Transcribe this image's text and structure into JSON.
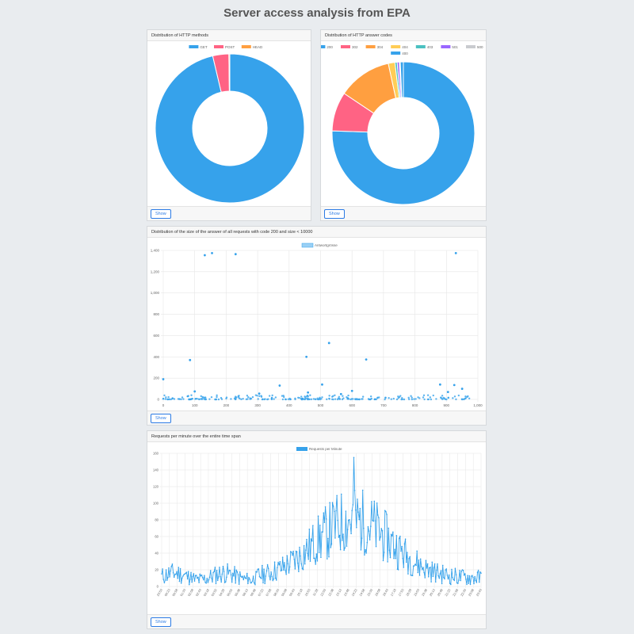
{
  "page": {
    "title": "Server access analysis from EPA"
  },
  "buttons": {
    "show": "Show"
  },
  "chart_data": [
    {
      "type": "pie",
      "title": "Distribution of HTTP methods",
      "donut": true,
      "legend_position": "top",
      "labels": [
        "GET",
        "POST",
        "HEAD"
      ],
      "values": [
        96.3,
        3.5,
        0.2
      ],
      "colors": [
        "#36a2eb",
        "#ff6384",
        "#ff9f40"
      ]
    },
    {
      "type": "pie",
      "title": "Distribution of HTTP answer codes",
      "donut": true,
      "legend_position": "top",
      "labels": [
        "200",
        "302",
        "304",
        "404",
        "403",
        "501",
        "500",
        "400"
      ],
      "values": [
        75.5,
        8.9,
        12.2,
        1.5,
        0.5,
        0.5,
        0.2,
        0.7
      ],
      "colors": [
        "#36a2eb",
        "#ff6384",
        "#ff9f40",
        "#ffcd56",
        "#4bc0c0",
        "#9966ff",
        "#c9cbcf",
        "#36a2eb"
      ]
    },
    {
      "type": "scatter",
      "title": "Distribution of the size of the answer of all requests with code 200 and size < 10000",
      "legend_position": "top",
      "series": [
        {
          "name": "Antwortgrösse",
          "color": "#36a2eb"
        }
      ],
      "xlim": [
        0,
        1000
      ],
      "ylim": [
        0,
        1400
      ],
      "xticks": [
        0,
        100,
        200,
        300,
        400,
        500,
        600,
        700,
        800,
        900,
        "1,000"
      ],
      "yticks": [
        0,
        200,
        400,
        600,
        800,
        "1,000",
        "1,200",
        "1,400"
      ],
      "grid": true,
      "outliers": [
        [
          0,
          190
        ],
        [
          85,
          370
        ],
        [
          132,
          1355
        ],
        [
          155,
          1375
        ],
        [
          230,
          1365
        ],
        [
          100,
          75
        ],
        [
          370,
          130
        ],
        [
          455,
          400
        ],
        [
          460,
          65
        ],
        [
          505,
          140
        ],
        [
          527,
          530
        ],
        [
          645,
          375
        ],
        [
          600,
          80
        ],
        [
          880,
          140
        ],
        [
          925,
          135
        ],
        [
          950,
          100
        ],
        [
          930,
          1375
        ],
        [
          905,
          70
        ],
        [
          305,
          55
        ],
        [
          565,
          50
        ]
      ],
      "baseline": {
        "count": 260,
        "y_range": [
          0,
          40
        ]
      }
    },
    {
      "type": "line",
      "title": "Requests per minute over the entire time span",
      "legend_position": "top",
      "series": [
        {
          "name": "Requests per Minute",
          "color": "#36a2eb"
        }
      ],
      "ylim": [
        0,
        160
      ],
      "yticks": [
        0,
        20,
        40,
        60,
        80,
        100,
        120,
        140,
        160
      ],
      "xticks": [
        "23:53",
        "00:23",
        "00:58",
        "01:33",
        "02:08",
        "02:43",
        "03:18",
        "03:53",
        "04:28",
        "05:03",
        "05:38",
        "06:13",
        "06:48",
        "07:23",
        "07:58",
        "08:33",
        "09:08",
        "09:43",
        "10:18",
        "10:53",
        "11:28",
        "12:03",
        "12:38",
        "13:13",
        "13:48",
        "14:23",
        "14:58",
        "15:33",
        "16:08",
        "16:43",
        "17:18",
        "17:53",
        "18:28",
        "19:03",
        "19:38",
        "20:13",
        "20:48",
        "21:23",
        "21:58",
        "22:33",
        "23:08",
        "23:43"
      ],
      "points": 360,
      "peak": 155,
      "grid": true
    }
  ]
}
